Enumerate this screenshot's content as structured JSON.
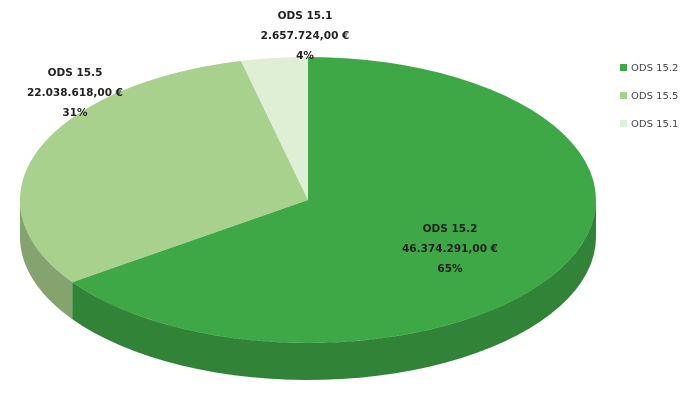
{
  "chart_data": {
    "type": "pie3d",
    "categories": [
      "ODS 15.2",
      "ODS 15.5",
      "ODS 15.1"
    ],
    "values": [
      46374291,
      22038618,
      2657724
    ],
    "value_labels": [
      "46.374.291,00 €",
      "22.038.618,00 €",
      "2.657.724,00 €"
    ],
    "percentages": [
      65,
      31,
      4
    ],
    "percentage_labels": [
      "65%",
      "31%",
      "4%"
    ],
    "colors": [
      "#3fa846",
      "#a9d18e",
      "#deefd6"
    ],
    "legend": "right"
  }
}
